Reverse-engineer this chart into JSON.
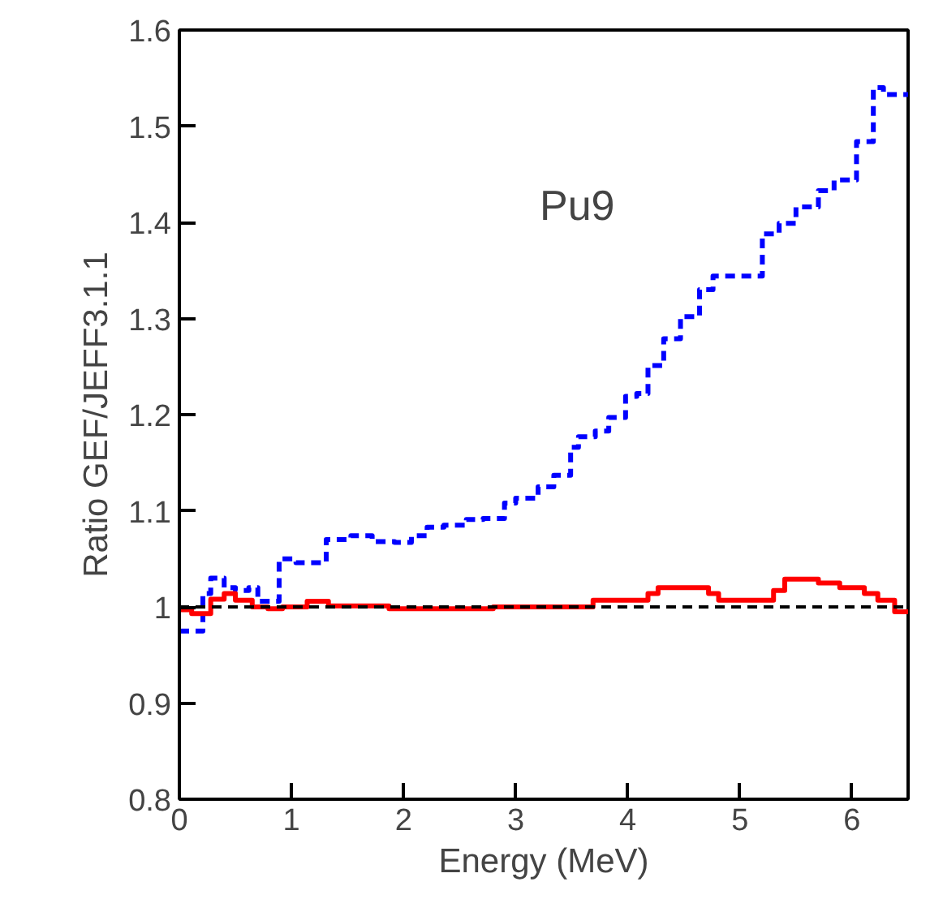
{
  "chart_data": {
    "type": "step",
    "xlabel": "Energy (MeV)",
    "ylabel": "Ratio GEF/JEFF3.1.1",
    "series": [
      {
        "color": "#0000ff",
        "line_style": "dashed",
        "x": [
          0,
          0.21,
          0.28,
          0.4,
          0.5,
          0.62,
          0.7,
          0.89,
          1.04,
          1.31,
          1.53,
          1.72,
          1.92,
          2.07,
          2.21,
          2.36,
          2.56,
          2.71,
          2.9,
          3.0,
          3.2,
          3.34,
          3.49,
          3.56,
          3.71,
          3.83,
          3.98,
          4.08,
          4.18,
          4.32,
          4.47,
          4.64,
          4.76,
          5.2,
          5.35,
          5.5,
          5.7,
          5.84,
          6.04,
          6.19,
          6.28,
          6.5
        ],
        "values": [
          0.975,
          1.014,
          1.03,
          1.02,
          1.017,
          1.02,
          1.006,
          1.05,
          1.046,
          1.07,
          1.074,
          1.068,
          1.067,
          1.074,
          1.083,
          1.085,
          1.091,
          1.092,
          1.108,
          1.113,
          1.125,
          1.137,
          1.166,
          1.177,
          1.183,
          1.197,
          1.219,
          1.222,
          1.251,
          1.279,
          1.302,
          1.33,
          1.344,
          1.388,
          1.399,
          1.416,
          1.433,
          1.444,
          1.484,
          1.54,
          1.533,
          1.533
        ]
      },
      {
        "color": "#ff0000",
        "line_style": "solid",
        "x": [
          0,
          0.11,
          0.28,
          0.4,
          0.5,
          0.65,
          0.79,
          0.92,
          1.14,
          1.33,
          1.87,
          2.8,
          3.69,
          4.18,
          4.27,
          4.72,
          4.81,
          5.3,
          5.4,
          5.7,
          5.89,
          6.11,
          6.23,
          6.38,
          6.5
        ],
        "values": [
          0.997,
          0.993,
          1.008,
          1.014,
          1.007,
          1.0,
          0.998,
          1.0,
          1.006,
          1.001,
          0.998,
          1.0,
          1.007,
          1.014,
          1.02,
          1.014,
          1.007,
          1.017,
          1.029,
          1.025,
          1.02,
          1.014,
          1.007,
          0.995,
          0.995
        ]
      }
    ],
    "ref_lines": [
      {
        "axis": "y",
        "value": 1,
        "color": "#000000",
        "line_style": "dashed"
      }
    ],
    "annotations": [
      "Pu9"
    ],
    "xlim": [
      0,
      6.5
    ],
    "ylim": [
      0.8,
      1.6
    ],
    "xticks": [
      0,
      1,
      2,
      3,
      4,
      5,
      6
    ],
    "yticks": [
      0.8,
      0.9,
      1,
      1.1,
      1.2,
      1.3,
      1.4,
      1.5,
      1.6
    ],
    "grid": false
  }
}
